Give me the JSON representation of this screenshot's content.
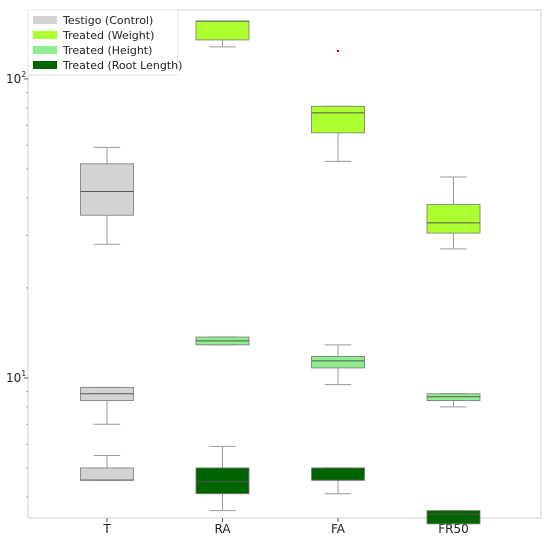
{
  "chart_data": {
    "type": "box",
    "yscale": "log",
    "ylim": [
      3.4,
      170
    ],
    "categories": [
      "T",
      "RA",
      "FA",
      "FR50"
    ],
    "yticks": [
      {
        "value": 10,
        "label_base": "10",
        "label_exp": "1"
      },
      {
        "value": 100,
        "label_base": "10",
        "label_exp": "2"
      }
    ],
    "grid": false,
    "legend_position": "top-left",
    "series": [
      {
        "name": "Testigo (Control)",
        "color": "#d3d3d3",
        "boxes": [
          {
            "category": "T",
            "whisker_low": 28,
            "q1": 35,
            "median": 42,
            "q3": 52,
            "whisker_high": 59
          },
          {
            "category": "T",
            "whisker_low": 7.0,
            "q1": 8.4,
            "median": 8.85,
            "q3": 9.3,
            "whisker_high": 9.3
          },
          {
            "category": "T",
            "whisker_low": 4.55,
            "q1": 4.55,
            "median": 4.55,
            "q3": 5.0,
            "whisker_high": 5.5
          }
        ]
      },
      {
        "name": "Treated (Weight)",
        "color": "#adff2f",
        "boxes": [
          {
            "category": "RA",
            "whisker_low": 128,
            "q1": 135,
            "median": 156,
            "q3": 156,
            "whisker_high": 156
          },
          {
            "category": "FA",
            "whisker_low": 53,
            "q1": 66,
            "median": 77,
            "q3": 81,
            "whisker_high": 81,
            "outliers": [
              124
            ]
          },
          {
            "category": "FR50",
            "whisker_low": 27,
            "q1": 30.5,
            "median": 33,
            "q3": 38,
            "whisker_high": 47
          }
        ]
      },
      {
        "name": "Treated (Height)",
        "color": "#90ee90",
        "boxes": [
          {
            "category": "RA",
            "whisker_low": 12.9,
            "q1": 12.9,
            "median": 13.3,
            "q3": 13.7,
            "whisker_high": 13.7
          },
          {
            "category": "FA",
            "whisker_low": 9.5,
            "q1": 10.8,
            "median": 11.4,
            "q3": 11.8,
            "whisker_high": 12.9
          },
          {
            "category": "FR50",
            "whisker_low": 8.0,
            "q1": 8.4,
            "median": 8.65,
            "q3": 8.85,
            "whisker_high": 8.85
          }
        ]
      },
      {
        "name": "Treated (Root Length)",
        "color": "#006400",
        "boxes": [
          {
            "category": "RA",
            "whisker_low": 3.6,
            "q1": 4.1,
            "median": 4.5,
            "q3": 5.0,
            "whisker_high": 5.9
          },
          {
            "category": "FA",
            "whisker_low": 4.1,
            "q1": 4.55,
            "median": 4.55,
            "q3": 5.0,
            "whisker_high": 5.0
          },
          {
            "category": "FR50",
            "whisker_low": 3.25,
            "q1": 3.25,
            "median": 3.5,
            "q3": 3.6,
            "whisker_high": 3.6
          }
        ]
      }
    ]
  }
}
